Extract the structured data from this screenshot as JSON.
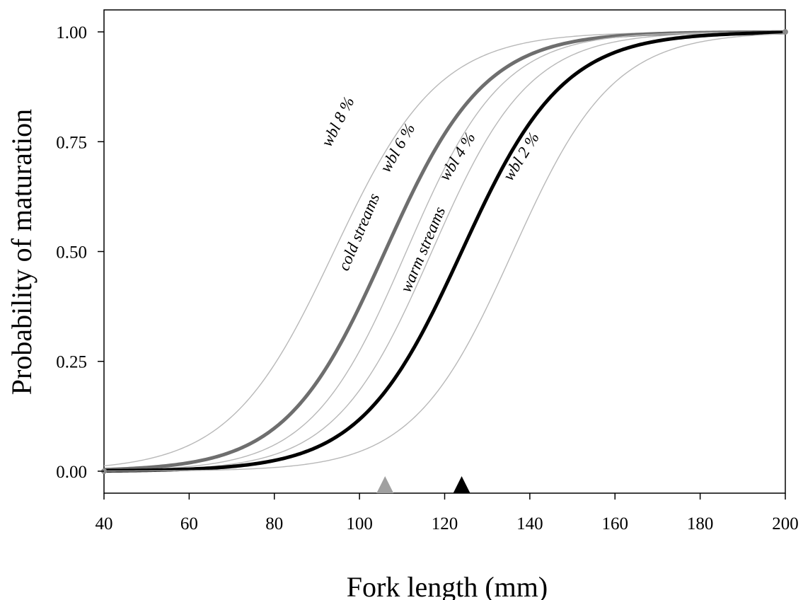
{
  "chart_data": {
    "type": "line",
    "title": "",
    "xlabel": "Fork length (mm)",
    "ylabel": "Probability of maturation",
    "xlim": [
      40,
      200
    ],
    "ylim": [
      -0.05,
      1.05
    ],
    "x_ticks": [
      "40",
      "60",
      "80",
      "100",
      "120",
      "140",
      "160",
      "180",
      "200"
    ],
    "y_ticks": [
      "0.00",
      "0.25",
      "0.50",
      "0.75",
      "1.00"
    ],
    "grid": false,
    "legend": "none",
    "series": [
      {
        "name": "wbl 8 %",
        "style": "thin",
        "color": "#b8b8b8",
        "midpoint": 94,
        "x": [
          40,
          50,
          60,
          70,
          80,
          90,
          100,
          110,
          120,
          130,
          140,
          150,
          160,
          170,
          180,
          190,
          200
        ],
        "y": [
          0.01,
          0.02,
          0.05,
          0.11,
          0.22,
          0.4,
          0.6,
          0.77,
          0.88,
          0.94,
          0.97,
          0.99,
          0.99,
          1.0,
          1.0,
          1.0,
          1.0
        ]
      },
      {
        "name": "cold streams",
        "style": "thick",
        "color": "#6e6e6e",
        "midpoint": 106,
        "x": [
          40,
          50,
          60,
          70,
          80,
          90,
          100,
          110,
          120,
          130,
          140,
          150,
          160,
          170,
          180,
          190,
          200
        ],
        "y": [
          0.0,
          0.01,
          0.02,
          0.04,
          0.09,
          0.19,
          0.37,
          0.57,
          0.76,
          0.88,
          0.94,
          0.97,
          0.99,
          0.99,
          1.0,
          1.0,
          1.0
        ]
      },
      {
        "name": "wbl 6 %",
        "style": "thin",
        "color": "#b8b8b8",
        "midpoint": 111,
        "x": [
          40,
          50,
          60,
          70,
          80,
          90,
          100,
          110,
          120,
          130,
          140,
          150,
          160,
          170,
          180,
          190,
          200
        ],
        "y": [
          0.0,
          0.01,
          0.01,
          0.03,
          0.06,
          0.13,
          0.28,
          0.48,
          0.69,
          0.84,
          0.93,
          0.97,
          0.99,
          0.99,
          1.0,
          1.0,
          1.0
        ]
      },
      {
        "name": "wbl 4 %",
        "style": "thin",
        "color": "#b8b8b8",
        "midpoint": 117,
        "x": [
          40,
          50,
          60,
          70,
          80,
          90,
          100,
          110,
          120,
          130,
          140,
          150,
          160,
          170,
          180,
          190,
          200
        ],
        "y": [
          0.0,
          0.0,
          0.01,
          0.02,
          0.04,
          0.09,
          0.19,
          0.37,
          0.58,
          0.77,
          0.89,
          0.95,
          0.98,
          0.99,
          1.0,
          1.0,
          1.0
        ]
      },
      {
        "name": "warm streams",
        "style": "thick",
        "color": "#000000",
        "midpoint": 124,
        "x": [
          40,
          50,
          60,
          70,
          80,
          90,
          100,
          110,
          120,
          130,
          140,
          150,
          160,
          170,
          180,
          190,
          200
        ],
        "y": [
          0.0,
          0.0,
          0.0,
          0.01,
          0.03,
          0.06,
          0.13,
          0.25,
          0.43,
          0.64,
          0.8,
          0.9,
          0.96,
          0.98,
          0.99,
          1.0,
          1.0
        ]
      },
      {
        "name": "wbl 2 %",
        "style": "thin",
        "color": "#b8b8b8",
        "midpoint": 136,
        "x": [
          40,
          50,
          60,
          70,
          80,
          90,
          100,
          110,
          120,
          130,
          140,
          150,
          160,
          170,
          180,
          190,
          200
        ],
        "y": [
          0.0,
          0.0,
          0.0,
          0.0,
          0.01,
          0.02,
          0.04,
          0.09,
          0.18,
          0.34,
          0.56,
          0.75,
          0.87,
          0.94,
          0.98,
          0.99,
          1.0
        ]
      }
    ],
    "markers": [
      {
        "x": 106,
        "color": "#a0a0a0",
        "shape": "triangle"
      },
      {
        "x": 124,
        "color": "#000000",
        "shape": "triangle"
      }
    ],
    "annotations": [
      {
        "text": "wbl 8 %",
        "x": 96,
        "y": 0.79,
        "angle": -63
      },
      {
        "text": "wbl 6 %",
        "x": 110,
        "y": 0.73,
        "angle": -60
      },
      {
        "text": "wbl 4 %",
        "x": 124,
        "y": 0.71,
        "angle": -58
      },
      {
        "text": "wbl 2 %",
        "x": 139,
        "y": 0.71,
        "angle": -58
      },
      {
        "text": "cold streams",
        "x": 101,
        "y": 0.54,
        "angle": -67
      },
      {
        "text": "warm streams",
        "x": 116,
        "y": 0.5,
        "angle": -67
      }
    ]
  }
}
